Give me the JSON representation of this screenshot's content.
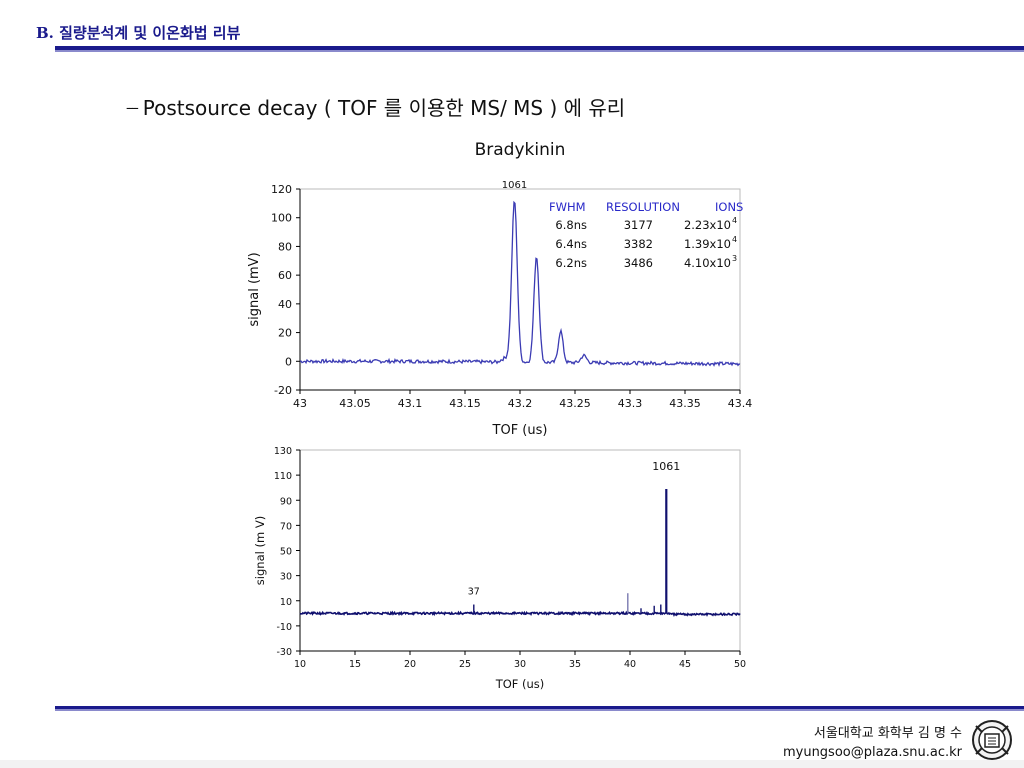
{
  "header": {
    "title": "B. 질량분석계 및 이온화법 리뷰"
  },
  "bullet": {
    "dash": "----",
    "text": "Postsource decay ( TOF 를 이용한 MS/ MS ) 에 유리"
  },
  "footer": {
    "line1": "서울대학교 화학부 김 명 수",
    "line2": "myungsoo@plaza.snu.ac.kr"
  },
  "colors": {
    "accent": "#1a1a8c",
    "series": "#3b3bb3",
    "series2": "#10106e",
    "table_header": "#2828c8"
  },
  "chart_data": [
    {
      "type": "line",
      "title": "Bradykinin",
      "xlabel": "TOF (us)",
      "ylabel": "signal (mV)",
      "xlim": [
        43,
        43.4
      ],
      "ylim": [
        -20,
        120
      ],
      "x_ticks": [
        "43",
        "43.05",
        "43.1",
        "43.15",
        "43.2",
        "43.25",
        "43.3",
        "43.35",
        "43.4"
      ],
      "y_ticks": [
        "120",
        "100",
        "80",
        "60",
        "40",
        "20",
        "0",
        "-20"
      ],
      "peak_label": "1061",
      "peaks": [
        {
          "x": 43.195,
          "y": 112
        },
        {
          "x": 43.215,
          "y": 74
        },
        {
          "x": 43.237,
          "y": 22
        },
        {
          "x": 43.258,
          "y": 5
        }
      ],
      "table": {
        "headers": [
          "FWHM",
          "RESOLUTION",
          "IONS"
        ],
        "rows": [
          [
            "6.8ns",
            "3177",
            "2.23x10",
            "4"
          ],
          [
            "6.4ns",
            "3382",
            "1.39x10",
            "4"
          ],
          [
            "6.2ns",
            "3486",
            "4.10x10",
            "3"
          ]
        ]
      }
    },
    {
      "type": "line",
      "xlabel": "TOF (us)",
      "ylabel": "signal (m V)",
      "xlim": [
        10,
        50
      ],
      "ylim": [
        -30,
        130
      ],
      "x_ticks": [
        "10",
        "15",
        "20",
        "25",
        "30",
        "35",
        "40",
        "45",
        "50"
      ],
      "y_ticks": [
        "130",
        "110",
        "90",
        "70",
        "50",
        "30",
        "10",
        "-10",
        "-30"
      ],
      "annotations": [
        {
          "label": "37",
          "x": 25.8,
          "y": 7
        },
        {
          "label": "1061",
          "x": 43.3,
          "y": 99
        }
      ],
      "peaks": [
        {
          "x": 25.8,
          "y": 7
        },
        {
          "x": 39.8,
          "y": 16
        },
        {
          "x": 41.0,
          "y": 4
        },
        {
          "x": 42.2,
          "y": 6
        },
        {
          "x": 42.8,
          "y": 7
        },
        {
          "x": 43.3,
          "y": 99
        }
      ]
    }
  ]
}
